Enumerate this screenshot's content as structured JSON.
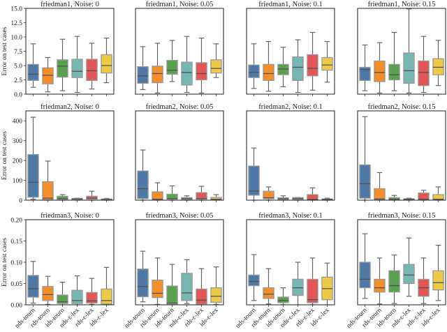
{
  "chart_data": {
    "type": "box",
    "ylabel": "Error on test cases",
    "categories": [
      "nds-tourn",
      "rds-tourn",
      "ids-tourn",
      "nds-ε-lex",
      "rds-ε-lex",
      "ids-ε-lex"
    ],
    "colors": [
      "#4e79a7",
      "#f28e2b",
      "#59a14f",
      "#76b7b2",
      "#e15759",
      "#edc948"
    ],
    "grid": false,
    "rows": [
      {
        "ylim": [
          0,
          15
        ],
        "yticks": [
          "0.0",
          "2.5",
          "5.0",
          "7.5",
          "10.0",
          "12.5",
          "15.0"
        ],
        "ytick_values": [
          0,
          2.5,
          5,
          7.5,
          10,
          12.5,
          15
        ],
        "panels": [
          {
            "title": "friedman1, Noise: 0",
            "boxes": [
              [
                1.2,
                2.4,
                3.5,
                5.2,
                8.8
              ],
              [
                0.4,
                1.8,
                3.3,
                4.6,
                6.4
              ],
              [
                0.6,
                3.0,
                4.9,
                6.0,
                9.6
              ],
              [
                0.3,
                2.9,
                4.0,
                6.1,
                10.1
              ],
              [
                0.9,
                2.4,
                4.1,
                6.1,
                8.9
              ],
              [
                2.0,
                3.7,
                5.0,
                6.9,
                9.8
              ]
            ]
          },
          {
            "title": "friedman1, Noise: 0.05",
            "boxes": [
              [
                0.8,
                1.9,
                3.2,
                4.8,
                8.3
              ],
              [
                0.2,
                2.0,
                3.6,
                4.9,
                8.9
              ],
              [
                2.2,
                3.5,
                4.2,
                5.9,
                9.4
              ],
              [
                0.3,
                1.6,
                3.8,
                5.6,
                10.1
              ],
              [
                0.2,
                2.5,
                3.6,
                5.5,
                9.8
              ],
              [
                2.9,
                3.7,
                4.5,
                6.0,
                8.8
              ]
            ]
          },
          {
            "title": "friedman1, Noise: 0.1",
            "boxes": [
              [
                1.0,
                2.9,
                3.8,
                5.1,
                8.8
              ],
              [
                0.5,
                2.4,
                3.6,
                5.2,
                9.2
              ],
              [
                1.3,
                3.4,
                4.4,
                5.2,
                8.2
              ],
              [
                0.3,
                2.4,
                4.7,
                6.5,
                9.5
              ],
              [
                0.7,
                3.2,
                4.5,
                6.9,
                10.8
              ],
              [
                2.1,
                4.2,
                5.1,
                6.4,
                9.2
              ]
            ]
          },
          {
            "title": "friedman1, Noise: 0.15",
            "boxes": [
              [
                0.6,
                2.4,
                4.3,
                4.7,
                8.6
              ],
              [
                0.2,
                2.2,
                3.8,
                5.8,
                9.0
              ],
              [
                0.6,
                2.5,
                3.4,
                5.2,
                10.8
              ],
              [
                0.2,
                1.9,
                4.1,
                7.2,
                14.9
              ],
              [
                0.3,
                1.5,
                3.8,
                5.8,
                10.1
              ],
              [
                1.5,
                3.4,
                4.7,
                6.2,
                9.4
              ]
            ]
          }
        ]
      },
      {
        "ylim": [
          0,
          450
        ],
        "yticks": [
          "0",
          "100",
          "200",
          "300",
          "400"
        ],
        "ytick_values": [
          0,
          100,
          200,
          300,
          400
        ],
        "panels": [
          {
            "title": "friedman2, Noise: 0",
            "boxes": [
              [
                5,
                15,
                90,
                230,
                418
              ],
              [
                0,
                2,
                10,
                93,
                197
              ],
              [
                0,
                3,
                8,
                20,
                28
              ],
              [
                0,
                3,
                6,
                9,
                10
              ],
              [
                0,
                5,
                10,
                20,
                45
              ],
              [
                0,
                1,
                3,
                6,
                9
              ]
            ]
          },
          {
            "title": "friedman2, Noise: 0.05",
            "boxes": [
              [
                0,
                8,
                58,
                147,
                253
              ],
              [
                0,
                3,
                5,
                42,
                88
              ],
              [
                0,
                5,
                8,
                30,
                72
              ],
              [
                0,
                4,
                8,
                13,
                22
              ],
              [
                0,
                5,
                8,
                38,
                70
              ],
              [
                0,
                3,
                5,
                14,
                28
              ]
            ]
          },
          {
            "title": "friedman2, Noise: 0.1",
            "boxes": [
              [
                0,
                25,
                46,
                172,
                263
              ],
              [
                0,
                7,
                12,
                45,
                67
              ],
              [
                0,
                3,
                7,
                12,
                22
              ],
              [
                0,
                4,
                8,
                13,
                14
              ],
              [
                0,
                2,
                4,
                28,
                62
              ],
              [
                0,
                2,
                4,
                6,
                10
              ]
            ]
          },
          {
            "title": "friedman2, Noise: 0.15",
            "boxes": [
              [
                0,
                10,
                83,
                178,
                421
              ],
              [
                0,
                3,
                6,
                58,
                139
              ],
              [
                0,
                2,
                5,
                13,
                24
              ],
              [
                0,
                2,
                5,
                7,
                10
              ],
              [
                0,
                3,
                5,
                36,
                50
              ],
              [
                0,
                3,
                5,
                28,
                67
              ]
            ]
          }
        ]
      },
      {
        "ylim": [
          0,
          0.2
        ],
        "yticks": [
          "0.00",
          "0.05",
          "0.10",
          "0.15",
          "0.20"
        ],
        "ytick_values": [
          0,
          0.05,
          0.1,
          0.15,
          0.2
        ],
        "panels": [
          {
            "title": "friedman3, Noise: 0",
            "boxes": [
              [
                0.004,
                0.018,
                0.038,
                0.069,
                0.102
              ],
              [
                0.001,
                0.01,
                0.024,
                0.043,
                0.067
              ],
              [
                0,
                0.003,
                0.007,
                0.023,
                0.053
              ],
              [
                0,
                0.003,
                0.01,
                0.034,
                0.068
              ],
              [
                0.001,
                0.004,
                0.009,
                0.029,
                0.062
              ],
              [
                0,
                0.002,
                0.01,
                0.037,
                0.088
              ]
            ]
          },
          {
            "title": "friedman3, Noise: 0.05",
            "boxes": [
              [
                0.007,
                0.019,
                0.043,
                0.084,
                0.126
              ],
              [
                0.001,
                0.017,
                0.027,
                0.058,
                0.11
              ],
              [
                0,
                0.002,
                0.004,
                0.044,
                0.095
              ],
              [
                0.003,
                0.01,
                0.028,
                0.074,
                0.106
              ],
              [
                0,
                0.002,
                0.011,
                0.037,
                0.085
              ],
              [
                0.001,
                0.006,
                0.02,
                0.04,
                0.089
              ]
            ]
          },
          {
            "title": "friedman3, Noise: 0.1",
            "boxes": [
              [
                0.01,
                0.045,
                0.055,
                0.07,
                0.118
              ],
              [
                0.002,
                0.015,
                0.025,
                0.04,
                0.085
              ],
              [
                0,
                0.005,
                0.01,
                0.018,
                0.04
              ],
              [
                0,
                0.022,
                0.04,
                0.06,
                0.1
              ],
              [
                0,
                0.005,
                0.012,
                0.06,
                0.11
              ],
              [
                0,
                0.012,
                0.038,
                0.065,
                0.098
              ]
            ]
          },
          {
            "title": "friedman3, Noise: 0.15",
            "boxes": [
              [
                0.015,
                0.04,
                0.06,
                0.1,
                0.167
              ],
              [
                0.002,
                0.03,
                0.04,
                0.06,
                0.11
              ],
              [
                0.003,
                0.03,
                0.045,
                0.08,
                0.117
              ],
              [
                0.02,
                0.05,
                0.07,
                0.095,
                0.157
              ],
              [
                0.003,
                0.02,
                0.04,
                0.06,
                0.11
              ],
              [
                0.01,
                0.035,
                0.052,
                0.08,
                0.14
              ]
            ]
          }
        ]
      }
    ]
  }
}
